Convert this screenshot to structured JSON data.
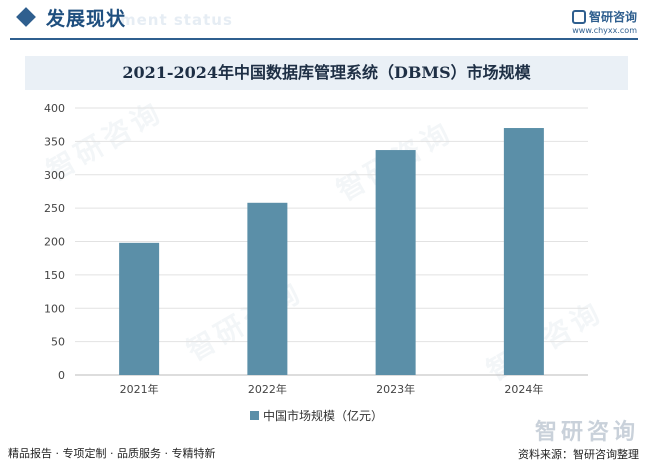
{
  "header": {
    "section_title": "发展现状",
    "section_subtitle": "ment status",
    "brand_name": "智研咨询",
    "brand_url": "www.chyxx.com"
  },
  "chart_data": {
    "type": "bar",
    "title": "2021-2024年中国数据库管理系统（DBMS）市场规模",
    "categories": [
      "2021年",
      "2022年",
      "2023年",
      "2024年"
    ],
    "series": [
      {
        "name": "中国市场规模（亿元）",
        "values": [
          198,
          258,
          337,
          370
        ]
      }
    ],
    "yticks": [
      "0",
      "50",
      "100",
      "150",
      "200",
      "250",
      "300",
      "350",
      "400"
    ],
    "ylim": [
      0,
      400
    ],
    "grid": true,
    "legend_position": "bottom",
    "bar_color": "#5b8fa8"
  },
  "footer": {
    "services": "精品报告 · 专项定制 · 品质服务 · 专精特新",
    "logo_name": "智研咨询",
    "source": "资料来源：智研咨询整理"
  },
  "watermark_text": "智研咨询"
}
